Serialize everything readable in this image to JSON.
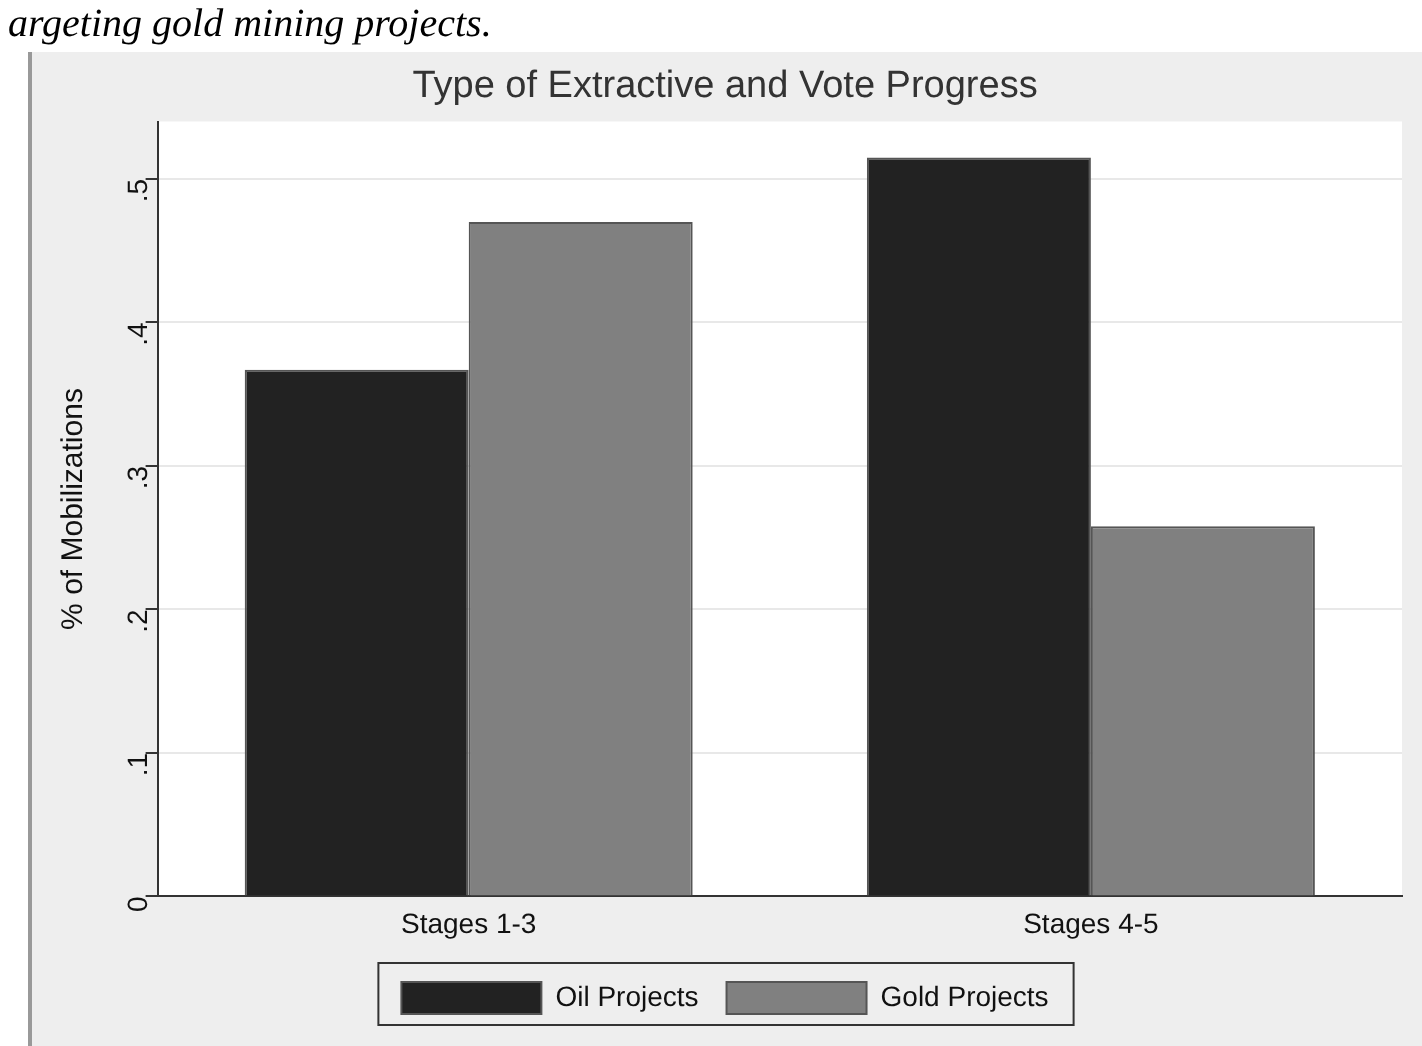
{
  "chart_data": {
    "type": "bar",
    "title": "Type of Extractive and Vote Progress",
    "ylabel": "% of Mobilizations",
    "categories": [
      "Stages 1-3",
      "Stages 4-5"
    ],
    "series": [
      {
        "name": "Oil Projects",
        "color": "#222222",
        "values": [
          0.367,
          0.515
        ]
      },
      {
        "name": "Gold Projects",
        "color": "#808080",
        "values": [
          0.47,
          0.258
        ]
      }
    ],
    "ylim": [
      0,
      0.54
    ],
    "yticks": [
      0,
      {
        "value": 0.1,
        "label": ".1"
      },
      {
        "value": 0.2,
        "label": ".2"
      },
      {
        "value": 0.3,
        "label": ".3"
      },
      {
        "value": 0.4,
        "label": ".4"
      },
      {
        "value": 0.5,
        "label": ".5"
      }
    ],
    "grid": "y",
    "legend": "bottom",
    "annotations": [
      "argeting gold mining projects."
    ]
  }
}
